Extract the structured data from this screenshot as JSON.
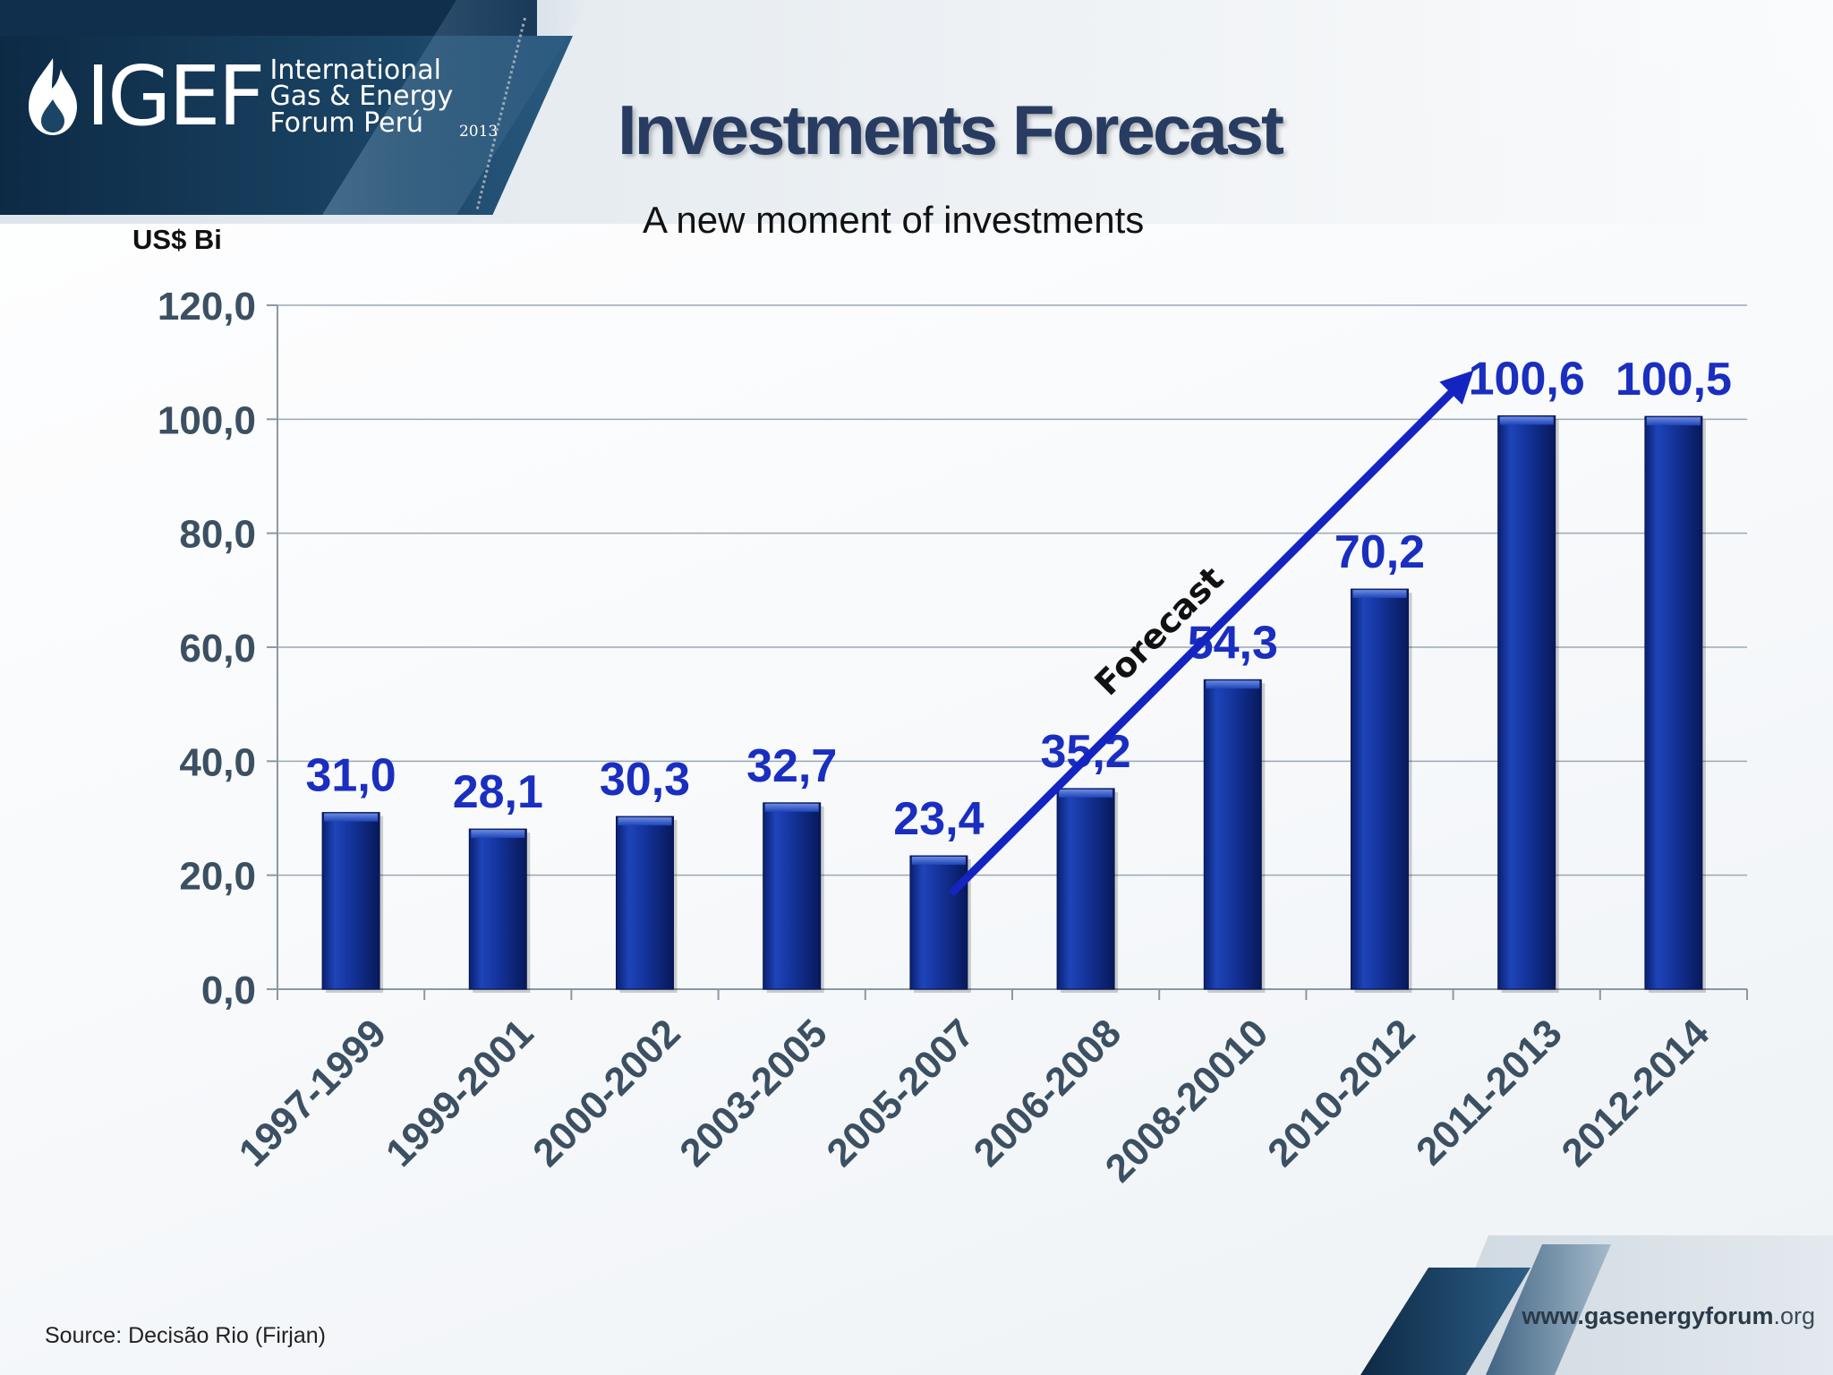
{
  "header": {
    "logo_word": "IGEF",
    "logo_lines": [
      "International",
      "Gas & Energy",
      "Forum Perú"
    ],
    "logo_year": "2013",
    "title": "Investments Forecast",
    "subtitle": "A new moment of investments"
  },
  "footer": {
    "source": "Source: Decisão Rio (Firjan)",
    "website_main": "www.gasenergyforum",
    "website_tld": ".org"
  },
  "colors": {
    "bar": "#14349c",
    "label": "#1a2ec0",
    "axis_text": "#3b5062",
    "arrow": "#1424c0"
  },
  "chart_data": {
    "type": "bar",
    "ylabel": "US$ Bi",
    "categories": [
      "1997-1999",
      "1999-2001",
      "2000-2002",
      "2003-2005",
      "2005-2007",
      "2006-2008",
      "2008-20010",
      "2010-2012",
      "2011-2013",
      "2012-2014"
    ],
    "values": [
      31.0,
      28.1,
      30.3,
      32.7,
      23.4,
      35.2,
      54.3,
      70.2,
      100.6,
      100.5
    ],
    "data_labels": [
      "31,0",
      "28,1",
      "30,3",
      "32,7",
      "23,4",
      "35,2",
      "54,3",
      "70,2",
      "100,6",
      "100,5"
    ],
    "yticks": [
      0,
      20,
      40,
      60,
      80,
      100,
      120
    ],
    "ytick_labels": [
      "0,0",
      "20,0",
      "40,0",
      "60,0",
      "80,0",
      "100,0",
      "120,0"
    ],
    "ylim": [
      0,
      120
    ],
    "grid": true,
    "annotation": {
      "text": "Forecast",
      "from_category": "2005-2007",
      "to_category": "2011-2013"
    }
  }
}
